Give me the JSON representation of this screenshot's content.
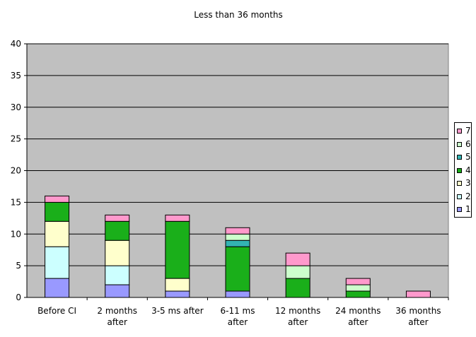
{
  "chart_data": {
    "type": "bar",
    "stacked": true,
    "title": "Less than 36 months",
    "xlabel": "",
    "ylabel": "",
    "ylim": [
      0,
      40
    ],
    "yticks": [
      0,
      5,
      10,
      15,
      20,
      25,
      30,
      35,
      40
    ],
    "grid": true,
    "legend_position": "right",
    "plot_background": "#c0c0c0",
    "categories": [
      [
        "Before CI"
      ],
      [
        "2 months",
        "after"
      ],
      [
        "3-5 ms after"
      ],
      [
        "6-11 ms",
        "after"
      ],
      [
        "12 months",
        "after"
      ],
      [
        "24 months",
        "after"
      ],
      [
        "36 months",
        "after"
      ]
    ],
    "series": [
      {
        "name": "1",
        "color": "#9999ff",
        "values": [
          3,
          2,
          1,
          1,
          0,
          0,
          0
        ]
      },
      {
        "name": "2",
        "color": "#ccffff",
        "values": [
          5,
          3,
          0,
          0,
          0,
          0,
          0
        ]
      },
      {
        "name": "3",
        "color": "#ffffcc",
        "values": [
          4,
          4,
          2,
          0,
          0,
          0,
          0
        ]
      },
      {
        "name": "4",
        "color": "#1aaf1a",
        "values": [
          3,
          3,
          9,
          7,
          3,
          1,
          0
        ]
      },
      {
        "name": "5",
        "color": "#33b3b3",
        "values": [
          0,
          0,
          0,
          1,
          0,
          0,
          0
        ]
      },
      {
        "name": "6",
        "color": "#ccffcc",
        "values": [
          0,
          0,
          0,
          1,
          2,
          1,
          0
        ]
      },
      {
        "name": "7",
        "color": "#ff99cc",
        "values": [
          1,
          1,
          1,
          1,
          2,
          1,
          1
        ]
      }
    ]
  }
}
